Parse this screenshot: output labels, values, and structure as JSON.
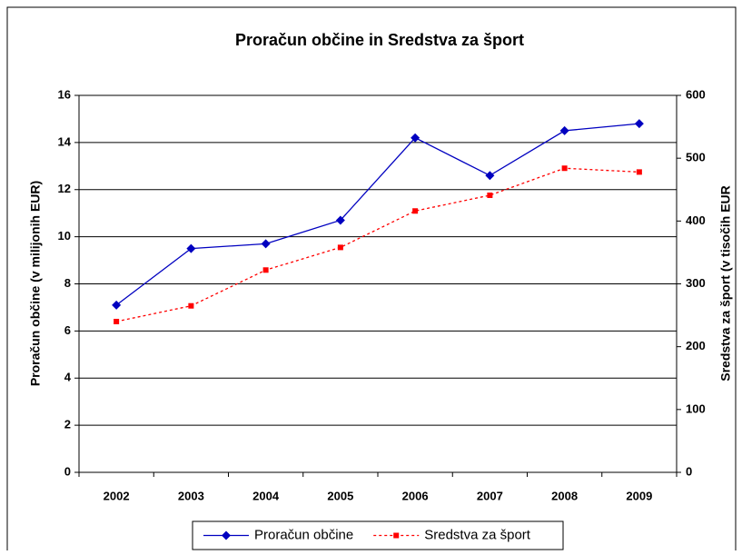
{
  "chart_data": {
    "type": "line",
    "title": "Proračun občine in Sredstva za šport",
    "y_label": "Proračun občine (v milijonih EUR)",
    "y2_label": "Sredstva za šport (v tisočih EUR",
    "categories": [
      "2002",
      "2003",
      "2004",
      "2005",
      "2006",
      "2007",
      "2008",
      "2009"
    ],
    "series": [
      {
        "name": "Proračun občine",
        "color": "#0000c0",
        "values": [
          7.1,
          9.5,
          9.7,
          10.7,
          14.2,
          12.6,
          14.5,
          14.8
        ]
      },
      {
        "name": "Sredstva za šport",
        "color": "#ff0000",
        "axis": "y2",
        "dashed": true,
        "values": [
          240,
          265,
          322,
          358,
          416,
          441,
          484,
          478
        ]
      }
    ],
    "ylim": [
      0,
      16
    ],
    "yticks": [
      0,
      2,
      4,
      6,
      8,
      10,
      12,
      14,
      16
    ],
    "y2lim": [
      0,
      600
    ],
    "y2ticks": [
      0,
      100,
      200,
      300,
      400,
      500,
      600
    ],
    "grid": true,
    "legend": "bottom"
  }
}
